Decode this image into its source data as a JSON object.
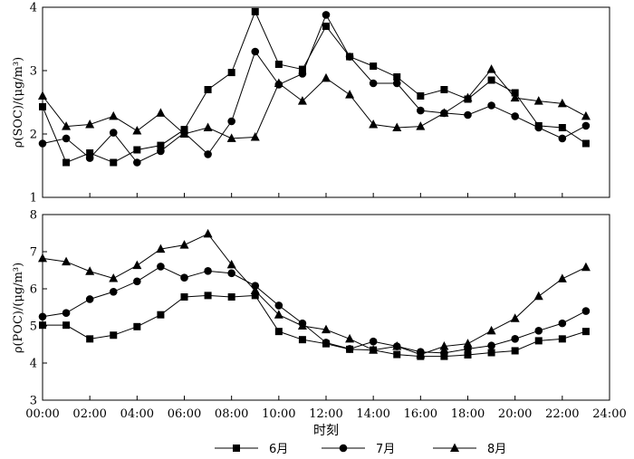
{
  "chart_data": [
    {
      "type": "line",
      "panel": "top",
      "ylabel": "ρ(SOC)/(μg/m³)",
      "ylim": [
        1,
        4
      ],
      "yticks": [
        "1",
        "2",
        "3",
        "4"
      ],
      "x": [
        "00:00",
        "01:00",
        "02:00",
        "03:00",
        "04:00",
        "05:00",
        "06:00",
        "07:00",
        "08:00",
        "09:00",
        "10:00",
        "11:00",
        "12:00",
        "13:00",
        "14:00",
        "15:00",
        "16:00",
        "17:00",
        "18:00",
        "19:00",
        "20:00",
        "21:00",
        "22:00",
        "23:00"
      ],
      "series": [
        {
          "name": "6月",
          "marker": "square",
          "values": [
            2.43,
            1.55,
            1.7,
            1.55,
            1.75,
            1.82,
            2.07,
            2.7,
            2.97,
            3.93,
            3.1,
            3.02,
            3.7,
            3.22,
            3.07,
            2.9,
            2.6,
            2.7,
            2.55,
            2.85,
            2.65,
            2.13,
            2.1,
            1.85
          ]
        },
        {
          "name": "7月",
          "marker": "circle",
          "values": [
            1.85,
            1.93,
            1.62,
            2.02,
            1.55,
            1.73,
            2.02,
            1.68,
            2.2,
            3.3,
            2.78,
            2.95,
            3.88,
            3.22,
            2.8,
            2.8,
            2.37,
            2.33,
            2.3,
            2.45,
            2.28,
            2.1,
            1.93,
            2.13
          ]
        },
        {
          "name": "8月",
          "marker": "triangle",
          "values": [
            2.6,
            2.12,
            2.15,
            2.28,
            2.05,
            2.33,
            2.0,
            2.1,
            1.93,
            1.95,
            2.8,
            2.52,
            2.88,
            2.62,
            2.15,
            2.1,
            2.12,
            2.33,
            2.57,
            3.02,
            2.57,
            2.52,
            2.48,
            2.28
          ]
        }
      ]
    },
    {
      "type": "line",
      "panel": "bottom",
      "ylabel": "ρ(POC)/(μg/m³)",
      "xlabel": "时刻",
      "ylim": [
        3,
        8
      ],
      "yticks": [
        "3",
        "4",
        "5",
        "6",
        "7",
        "8"
      ],
      "xticks": [
        "00:00",
        "02:00",
        "04:00",
        "06:00",
        "08:00",
        "10:00",
        "12:00",
        "14:00",
        "16:00",
        "18:00",
        "20:00",
        "22:00",
        "24:00"
      ],
      "x": [
        "00:00",
        "01:00",
        "02:00",
        "03:00",
        "04:00",
        "05:00",
        "06:00",
        "07:00",
        "08:00",
        "09:00",
        "10:00",
        "11:00",
        "12:00",
        "13:00",
        "14:00",
        "15:00",
        "16:00",
        "17:00",
        "18:00",
        "19:00",
        "20:00",
        "21:00",
        "22:00",
        "23:00"
      ],
      "series": [
        {
          "name": "6月",
          "marker": "square",
          "values": [
            5.02,
            5.02,
            4.65,
            4.75,
            4.98,
            5.3,
            5.78,
            5.82,
            5.78,
            5.82,
            4.85,
            4.63,
            4.52,
            4.37,
            4.35,
            4.23,
            4.18,
            4.18,
            4.22,
            4.28,
            4.33,
            4.6,
            4.65,
            4.85
          ]
        },
        {
          "name": "7月",
          "marker": "circle",
          "values": [
            5.25,
            5.35,
            5.72,
            5.92,
            6.2,
            6.6,
            6.3,
            6.48,
            6.42,
            6.08,
            5.55,
            5.07,
            4.55,
            4.38,
            4.58,
            4.45,
            4.3,
            4.27,
            4.38,
            4.47,
            4.65,
            4.87,
            5.07,
            5.4
          ]
        },
        {
          "name": "8月",
          "marker": "triangle",
          "values": [
            6.82,
            6.73,
            6.47,
            6.28,
            6.63,
            7.07,
            7.18,
            7.48,
            6.65,
            5.95,
            5.3,
            5.0,
            4.9,
            4.65,
            4.35,
            4.45,
            4.23,
            4.45,
            4.52,
            4.87,
            5.2,
            5.8,
            6.27,
            6.58
          ]
        }
      ]
    }
  ],
  "legend": [
    {
      "label": "6月",
      "marker": "square"
    },
    {
      "label": "7月",
      "marker": "circle"
    },
    {
      "label": "8月",
      "marker": "triangle"
    }
  ]
}
